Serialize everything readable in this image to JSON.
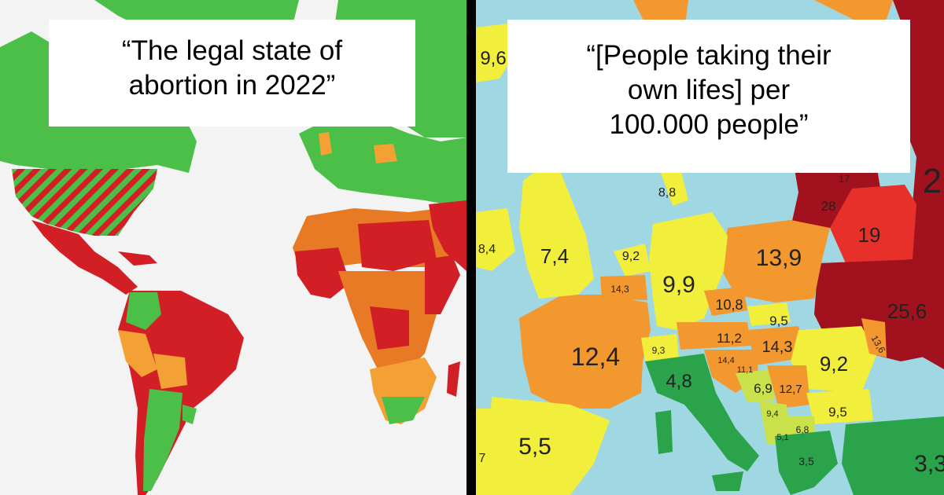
{
  "left_panel": {
    "caption_lines": [
      "“The legal state of",
      "abortion in 2022”"
    ],
    "colors": {
      "ocean": "#f3f3f3",
      "legal": "#4cbf48",
      "restricted_mid": "#f3a134",
      "restricted_high": "#e87a26",
      "illegal": "#d21f26",
      "mixed_hatch": "#d21f26"
    }
  },
  "right_panel": {
    "caption_lines": [
      "“[People taking their",
      "own lifes] per",
      "100.000 people”"
    ],
    "colors": {
      "sea": "#9fd7e3",
      "low": "#2aa34a",
      "low_mid": "#c9e24b",
      "mid": "#f2ee3c",
      "mid_high": "#f3972f",
      "high": "#e8302a",
      "very_high": "#a1121e"
    },
    "region_labels": [
      {
        "id": "belarus",
        "text": "19"
      },
      {
        "id": "lithuania",
        "text": "28"
      },
      {
        "id": "latvia",
        "text": "17"
      },
      {
        "id": "russia",
        "text": "2"
      },
      {
        "id": "ukraine",
        "text": "25,6"
      },
      {
        "id": "poland",
        "text": "13,9"
      },
      {
        "id": "germany",
        "text": "9,9"
      },
      {
        "id": "france",
        "text": "12,4"
      },
      {
        "id": "uk",
        "text": "7,4"
      },
      {
        "id": "ireland",
        "text": "8,4"
      },
      {
        "id": "iceland",
        "text": "9,6"
      },
      {
        "id": "denmark",
        "text": "8,8"
      },
      {
        "id": "netherlands",
        "text": "9,2"
      },
      {
        "id": "belgium",
        "text": "14,3"
      },
      {
        "id": "czechia",
        "text": "10,8"
      },
      {
        "id": "slovakia",
        "text": "9,5"
      },
      {
        "id": "austria",
        "text": "11,2"
      },
      {
        "id": "hungary",
        "text": "14,3"
      },
      {
        "id": "moldova",
        "text": "13,6"
      },
      {
        "id": "romania",
        "text": "9,2"
      },
      {
        "id": "switzerland",
        "text": "9,3"
      },
      {
        "id": "slovenia",
        "text": "14,4"
      },
      {
        "id": "croatia",
        "text": "11,1"
      },
      {
        "id": "italy",
        "text": "4,8"
      },
      {
        "id": "bosnia",
        "text": "6,9"
      },
      {
        "id": "serbia",
        "text": "12,7"
      },
      {
        "id": "montenegro",
        "text": "9,4"
      },
      {
        "id": "bulgaria",
        "text": "9,5"
      },
      {
        "id": "north-macedonia",
        "text": "6,8"
      },
      {
        "id": "albania",
        "text": "5,1"
      },
      {
        "id": "greece",
        "text": "3,5"
      },
      {
        "id": "spain",
        "text": "5,5"
      },
      {
        "id": "portugal",
        "text": "7"
      },
      {
        "id": "turkey",
        "text": "3,3"
      }
    ]
  }
}
